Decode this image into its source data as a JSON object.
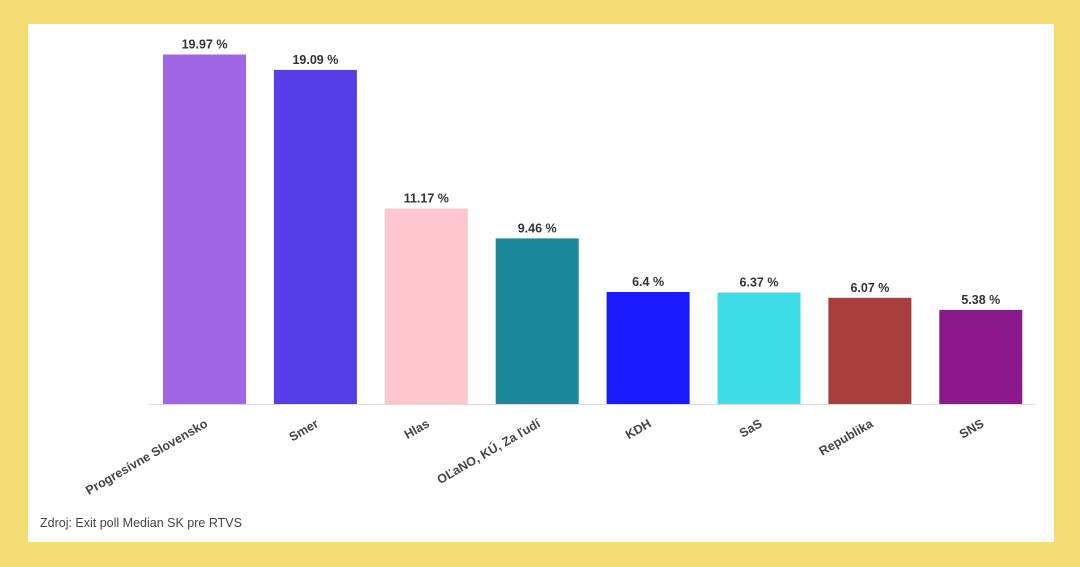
{
  "colors": {
    "background": "#f4db72",
    "card": "#ffffff"
  },
  "chart_data": {
    "type": "bar",
    "categories": [
      "Progresívne Slovensko",
      "Smer",
      "Hlas",
      "OĽaNO, KÚ, Za ľudí",
      "KDH",
      "SaS",
      "Republika",
      "SNS"
    ],
    "values": [
      19.97,
      19.09,
      11.17,
      9.46,
      6.4,
      6.37,
      6.07,
      5.38
    ],
    "value_labels": [
      "19.97 %",
      "19.09 %",
      "11.17 %",
      "9.46 %",
      "6.4 %",
      "6.37 %",
      "6.07 %",
      "5.38 %"
    ],
    "colors": [
      "#a066e6",
      "#553de8",
      "#ffc6cf",
      "#1a8898",
      "#1a1aff",
      "#3edde6",
      "#a83d3d",
      "#8b198b"
    ],
    "title": "",
    "xlabel": "",
    "ylabel": "",
    "ylim": [
      0,
      20
    ],
    "grid": false,
    "legend": "none"
  },
  "source": "Zdroj: Exit poll Median SK pre RTVS"
}
